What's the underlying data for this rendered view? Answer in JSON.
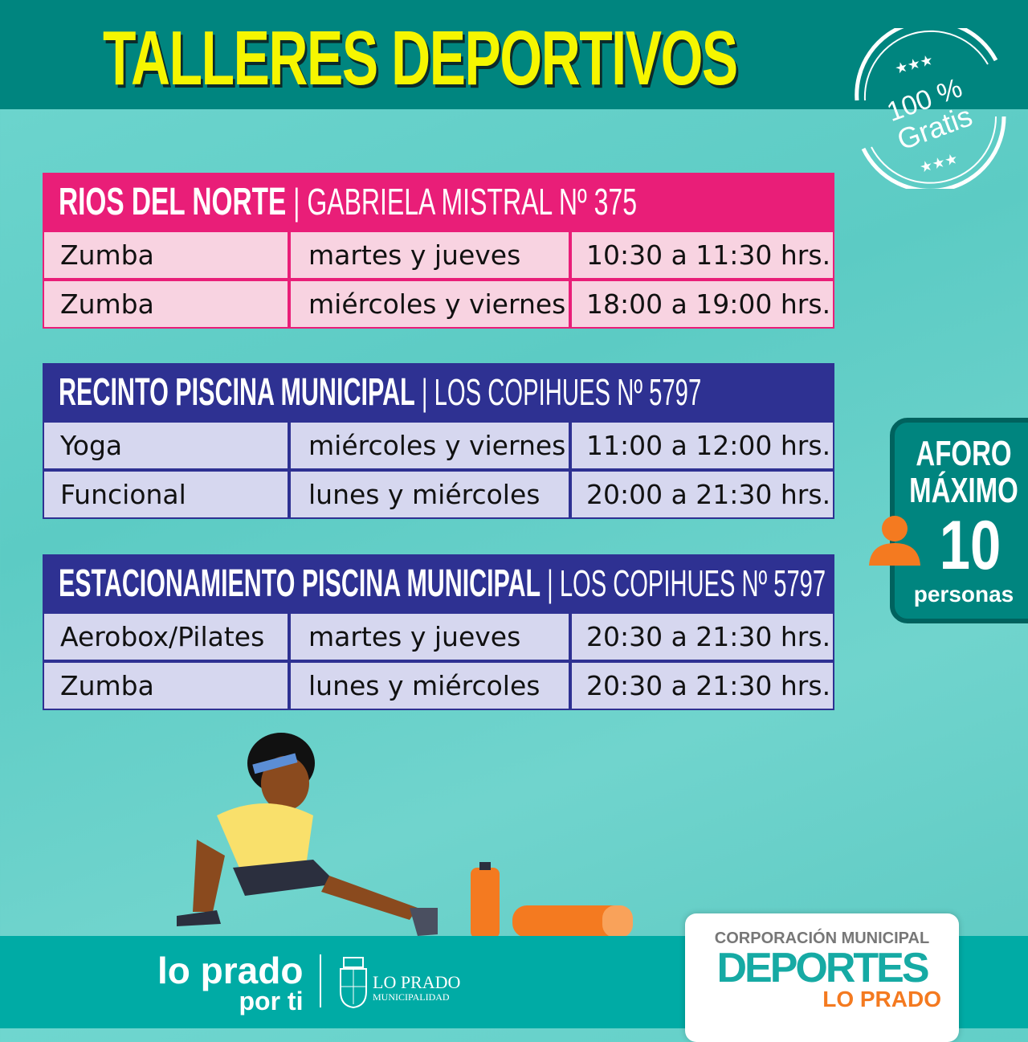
{
  "title": "TALLERES DEPORTIVOS",
  "stamp": {
    "line1": "100 %",
    "line2": "Gratis"
  },
  "colors": {
    "header": "#00857f",
    "title": "#f6f600",
    "pink": "#e91e78",
    "blue": "#2e3192",
    "orange": "#f47a20"
  },
  "tables": [
    {
      "name": "RIOS DEL NORTE",
      "address": "GABRIELA MISTRAL Nº 375",
      "rows": [
        [
          "Zumba",
          "martes y jueves",
          "10:30 a 11:30 hrs."
        ],
        [
          "Zumba",
          "miércoles y viernes",
          "18:00 a 19:00 hrs."
        ]
      ]
    },
    {
      "name": "RECINTO PISCINA MUNICIPAL",
      "address": "LOS COPIHUES Nº 5797",
      "rows": [
        [
          "Yoga",
          "miércoles y viernes",
          "11:00 a 12:00 hrs."
        ],
        [
          "Funcional",
          "lunes y miércoles",
          "20:00 a 21:30 hrs."
        ]
      ]
    },
    {
      "name": "ESTACIONAMIENTO PISCINA MUNICIPAL",
      "address": "LOS COPIHUES Nº 5797",
      "rows": [
        [
          "Aerobox/Pilates",
          "martes y jueves",
          "20:30 a 21:30 hrs."
        ],
        [
          "Zumba",
          "lunes y miércoles",
          "20:30 a 21:30 hrs."
        ]
      ]
    }
  ],
  "aforo": {
    "line1": "AFORO",
    "line2": "MÁXIMO",
    "number": "10",
    "unit": "personas",
    "icon": "person-icon"
  },
  "footer": {
    "slogan1": "lo prado",
    "slogan2": "por ti",
    "muni1": "LO PRADO",
    "muni2": "MUNICIPALIDAD",
    "corp": "CORPORACIÓN MUNICIPAL",
    "deportes": "DEPORTES",
    "loprado": "LO PRADO"
  }
}
